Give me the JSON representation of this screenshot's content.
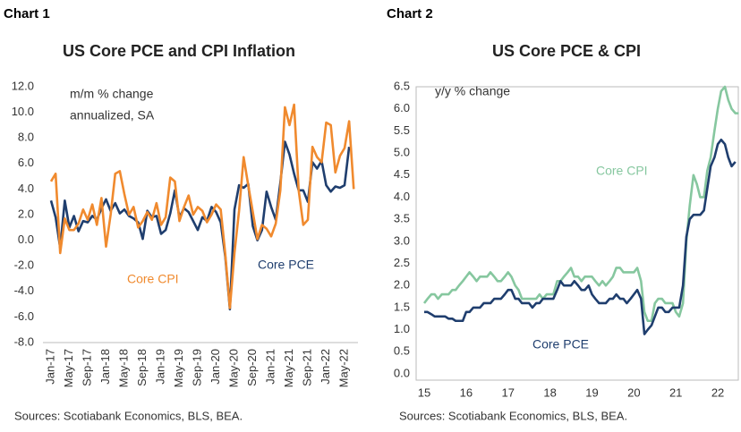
{
  "chart_data": [
    {
      "type": "line",
      "label": "Chart 1",
      "title": "US Core PCE and CPI Inflation",
      "note": [
        "m/m % change",
        "annualized, SA"
      ],
      "source": "Sources: Scotiabank Economics, BLS, BEA.",
      "categories": [
        "Jan-17",
        null,
        null,
        null,
        "May-17",
        null,
        null,
        null,
        "Sep-17",
        null,
        null,
        null,
        "Jan-18",
        null,
        null,
        null,
        "May-18",
        null,
        null,
        null,
        "Sep-18",
        null,
        null,
        null,
        "Jan-19",
        null,
        null,
        null,
        "May-19",
        null,
        null,
        null,
        "Sep-19",
        null,
        null,
        null,
        "Jan-20",
        null,
        null,
        null,
        "May-20",
        null,
        null,
        null,
        "Sep-20",
        null,
        null,
        null,
        "Jan-21",
        null,
        null,
        null,
        "May-21",
        null,
        null,
        null,
        "Sep-21",
        null,
        null,
        null,
        "Jan-22",
        null,
        null,
        null,
        "May-22",
        null,
        null
      ],
      "series": [
        {
          "name": "Core PCE",
          "color": "#1f3e6e",
          "values": [
            3.1,
            1.8,
            -0.6,
            3.1,
            1.0,
            1.9,
            0.7,
            1.5,
            1.4,
            1.9,
            1.6,
            2.5,
            3.2,
            2.3,
            2.9,
            2.1,
            2.4,
            1.9,
            1.7,
            1.4,
            0.1,
            2.3,
            1.8,
            1.9,
            0.5,
            0.8,
            2.1,
            3.9,
            1.8,
            2.5,
            2.2,
            1.5,
            0.8,
            1.8,
            1.5,
            2.6,
            2.2,
            1.4,
            -1.3,
            -5.4,
            2.4,
            4.3,
            4.1,
            4.4,
            1.1,
            0.0,
            0.8,
            3.8,
            2.6,
            1.6,
            4.5,
            7.7,
            6.7,
            5.2,
            3.9,
            3.9,
            3.0,
            6.1,
            5.6,
            6.2,
            4.3,
            3.8,
            4.2,
            4.1,
            4.3,
            7.3,
            null
          ]
        },
        {
          "name": "Core CPI",
          "color": "#f08a2e",
          "values": [
            4.6,
            5.2,
            -1.0,
            1.7,
            0.8,
            0.8,
            1.3,
            2.4,
            1.6,
            2.8,
            1.2,
            3.3,
            -0.5,
            2.0,
            5.2,
            5.4,
            3.6,
            2.0,
            2.6,
            1.0,
            1.5,
            2.2,
            1.6,
            2.9,
            1.2,
            1.8,
            4.9,
            4.6,
            1.5,
            2.6,
            3.5,
            2.0,
            2.6,
            2.3,
            1.4,
            2.0,
            2.8,
            2.4,
            -1.1,
            -5.3,
            -1.0,
            2.3,
            6.5,
            4.3,
            2.2,
            0.1,
            1.2,
            0.9,
            0.3,
            1.3,
            3.9,
            10.4,
            9.0,
            10.6,
            3.9,
            1.2,
            1.6,
            7.3,
            6.5,
            6.1,
            9.2,
            9.0,
            5.3,
            6.6,
            7.2,
            9.3,
            4.0
          ]
        }
      ],
      "ylim": [
        -8,
        12
      ],
      "yticks": [
        {
          "value": -8,
          "label": "-8.0"
        },
        {
          "value": -6,
          "label": "-6.0"
        },
        {
          "value": -4,
          "label": "-4.0"
        },
        {
          "value": -2,
          "label": "-2.0"
        },
        {
          "value": 0,
          "label": "0.0"
        },
        {
          "value": 2,
          "label": "2.0"
        },
        {
          "value": 4,
          "label": "4.0"
        },
        {
          "value": 6,
          "label": "6.0"
        },
        {
          "value": 8,
          "label": "8.0"
        },
        {
          "value": 10,
          "label": "10.0"
        },
        {
          "value": 12,
          "label": "12.0"
        }
      ],
      "grid": false
    },
    {
      "type": "line",
      "label": "Chart 2",
      "title": "US Core PCE & CPI",
      "note": [
        "y/y % change"
      ],
      "source": "Sources: Scotiabank Economics, BLS, BEA.",
      "x": [
        15,
        15.08,
        15.17,
        15.25,
        15.33,
        15.42,
        15.5,
        15.58,
        15.67,
        15.75,
        15.83,
        15.92,
        16,
        16.08,
        16.17,
        16.25,
        16.33,
        16.42,
        16.5,
        16.58,
        16.67,
        16.75,
        16.83,
        16.92,
        17,
        17.08,
        17.17,
        17.25,
        17.33,
        17.42,
        17.5,
        17.58,
        17.67,
        17.75,
        17.83,
        17.92,
        18,
        18.08,
        18.17,
        18.25,
        18.33,
        18.42,
        18.5,
        18.58,
        18.67,
        18.75,
        18.83,
        18.92,
        19,
        19.08,
        19.17,
        19.25,
        19.33,
        19.42,
        19.5,
        19.58,
        19.67,
        19.75,
        19.83,
        19.92,
        20,
        20.08,
        20.17,
        20.25,
        20.33,
        20.42,
        20.5,
        20.58,
        20.67,
        20.75,
        20.83,
        20.92,
        21,
        21.08,
        21.17,
        21.25,
        21.33,
        21.42,
        21.5,
        21.58,
        21.67,
        21.75,
        21.83,
        21.92,
        22,
        22.08,
        22.17,
        22.25,
        22.33,
        22.42,
        22.5
      ],
      "series": [
        {
          "name": "Core CPI",
          "color": "#86c79f",
          "values": [
            1.6,
            1.7,
            1.8,
            1.8,
            1.7,
            1.8,
            1.8,
            1.8,
            1.9,
            1.9,
            2.0,
            2.1,
            2.2,
            2.3,
            2.2,
            2.1,
            2.2,
            2.2,
            2.2,
            2.3,
            2.2,
            2.1,
            2.1,
            2.2,
            2.3,
            2.2,
            2.0,
            1.9,
            1.7,
            1.7,
            1.7,
            1.7,
            1.7,
            1.8,
            1.7,
            1.8,
            1.8,
            1.8,
            2.1,
            2.1,
            2.2,
            2.3,
            2.4,
            2.2,
            2.2,
            2.1,
            2.2,
            2.2,
            2.2,
            2.1,
            2.0,
            2.1,
            2.0,
            2.1,
            2.2,
            2.4,
            2.4,
            2.3,
            2.3,
            2.3,
            2.3,
            2.4,
            2.1,
            1.4,
            1.2,
            1.2,
            1.6,
            1.7,
            1.7,
            1.6,
            1.6,
            1.6,
            1.4,
            1.3,
            1.6,
            3.0,
            3.8,
            4.5,
            4.3,
            4.0,
            4.0,
            4.6,
            4.9,
            5.5,
            6.0,
            6.4,
            6.5,
            6.2,
            6.0,
            5.9,
            5.9
          ]
        },
        {
          "name": "Core PCE",
          "color": "#1f3e6e",
          "values": [
            1.4,
            1.4,
            1.35,
            1.3,
            1.3,
            1.3,
            1.3,
            1.25,
            1.25,
            1.2,
            1.2,
            1.2,
            1.4,
            1.4,
            1.5,
            1.5,
            1.5,
            1.6,
            1.6,
            1.6,
            1.7,
            1.7,
            1.7,
            1.8,
            1.9,
            1.9,
            1.7,
            1.7,
            1.6,
            1.6,
            1.6,
            1.5,
            1.6,
            1.6,
            1.7,
            1.7,
            1.7,
            1.7,
            1.9,
            2.1,
            2.0,
            2.0,
            2.0,
            2.1,
            2.0,
            1.9,
            1.9,
            2.0,
            1.8,
            1.7,
            1.6,
            1.6,
            1.6,
            1.7,
            1.7,
            1.8,
            1.7,
            1.7,
            1.6,
            1.7,
            1.8,
            1.9,
            1.7,
            0.9,
            1.0,
            1.1,
            1.3,
            1.5,
            1.5,
            1.4,
            1.4,
            1.5,
            1.5,
            1.5,
            2.0,
            3.1,
            3.5,
            3.6,
            3.6,
            3.6,
            3.7,
            4.2,
            4.7,
            4.9,
            5.2,
            5.3,
            5.2,
            4.9,
            4.7,
            4.8,
            null
          ]
        }
      ],
      "xlim": [
        15,
        22.5
      ],
      "xticks": [
        15,
        16,
        17,
        18,
        19,
        20,
        21,
        22
      ],
      "ylim": [
        0,
        6.5
      ],
      "yticks": [
        {
          "value": 0,
          "label": "0.0"
        },
        0.5,
        {
          "value": 1,
          "label": "1.0"
        },
        1.5,
        {
          "value": 2,
          "label": "2.0"
        },
        2.5,
        {
          "value": 3,
          "label": "3.0"
        },
        3.5,
        {
          "value": 4,
          "label": "4.0"
        },
        4.5,
        {
          "value": 5,
          "label": "5.0"
        },
        5.5,
        {
          "value": 6,
          "label": "6.0"
        },
        6.5
      ],
      "grid": false
    }
  ]
}
